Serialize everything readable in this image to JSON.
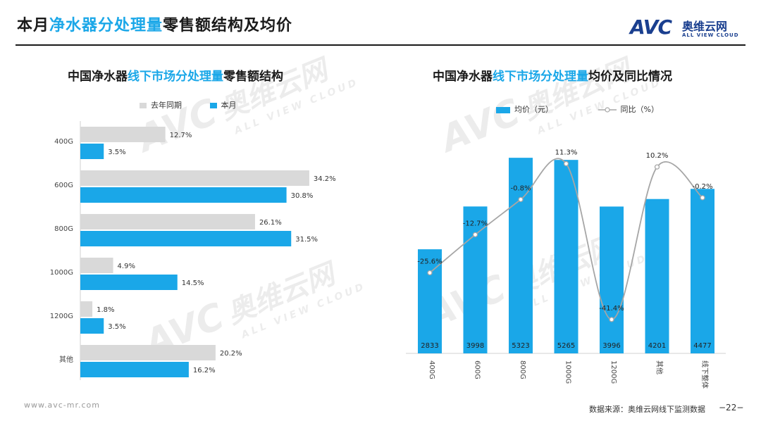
{
  "page": {
    "title_prefix": "本月",
    "title_highlight": "净水器分处理量",
    "title_suffix": "零售额结构及均价",
    "logo_mark": "AVC",
    "logo_cn": "奥维云网",
    "logo_en": "ALL VIEW CLOUD",
    "watermark_cn": "奥维云网",
    "watermark_en": "ALL VIEW CLOUD",
    "footer_url": "www.avc-mr.com",
    "footer_source": "数据来源：奥维云网线下监测数据",
    "page_number": "−22−"
  },
  "colors": {
    "accent": "#1aa7e8",
    "bar_blue": "#1aa7e8",
    "bar_grey": "#d9d9d9",
    "line_grey": "#a6a6a6",
    "dark_text": "#1a1a1a",
    "logo_blue": "#1a3f8f"
  },
  "left": {
    "title_prefix": "中国净水器",
    "title_highlight": "线下市场分处理量",
    "title_suffix": "零售额结构"
  },
  "right": {
    "title_prefix": "中国净水器",
    "title_highlight": "线下市场分处理量",
    "title_suffix": "均价及同比情况"
  },
  "chart_data": [
    {
      "type": "bar",
      "orientation": "horizontal",
      "title": "中国净水器线下市场分处理量零售额结构",
      "categories": [
        "400G",
        "600G",
        "800G",
        "1000G",
        "1200G",
        "其他"
      ],
      "series": [
        {
          "name": "去年同期",
          "values": [
            12.7,
            34.2,
            26.1,
            4.9,
            1.8,
            20.2
          ],
          "labels": [
            "12.7%",
            "34.2%",
            "26.1%",
            "4.9%",
            "1.8%",
            "20.2%"
          ],
          "color": "#d9d9d9"
        },
        {
          "name": "本月",
          "values": [
            3.5,
            30.8,
            31.5,
            14.5,
            3.5,
            16.2
          ],
          "labels": [
            "3.5%",
            "30.8%",
            "31.5%",
            "14.5%",
            "3.5%",
            "16.2%"
          ],
          "color": "#1aa7e8"
        }
      ],
      "legend": "top",
      "grid": false
    },
    {
      "type": "bar+line",
      "title": "中国净水器线下市场分处理量均价及同比情况",
      "categories": [
        "400G",
        "600G",
        "800G",
        "1000G",
        "1200G",
        "其他",
        "线下整体"
      ],
      "series": [
        {
          "name": "均价（元）",
          "type": "bar",
          "values": [
            2833,
            3998,
            5323,
            5265,
            3996,
            4201,
            4477
          ],
          "labels": [
            "2833",
            "3998",
            "5323",
            "5265",
            "3996",
            "4201",
            "4477"
          ],
          "color": "#1aa7e8"
        },
        {
          "name": "同比（%）",
          "type": "line",
          "values": [
            -25.6,
            -12.7,
            -0.8,
            11.3,
            -41.4,
            10.2,
            -0.2
          ],
          "labels": [
            "-25.6%",
            "-12.7%",
            "-0.8%",
            "11.3%",
            "-41.4%",
            "10.2%",
            "-0.2%"
          ],
          "color": "#a6a6a6"
        }
      ],
      "legend": "top",
      "grid": false
    }
  ]
}
